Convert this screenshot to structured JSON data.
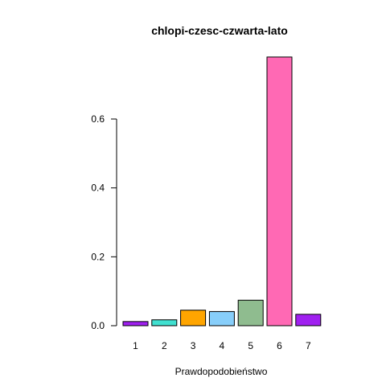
{
  "chart_data": {
    "type": "bar",
    "title": "chlopi-czesc-czwarta-lato",
    "xlabel": "Prawdopodobieństwo",
    "ylabel": "",
    "categories": [
      "1",
      "2",
      "3",
      "4",
      "5",
      "6",
      "7"
    ],
    "values": [
      0.012,
      0.017,
      0.045,
      0.041,
      0.074,
      0.78,
      0.033
    ],
    "colors": [
      "#A020F0",
      "#40E0D0",
      "#FFA500",
      "#87CEFA",
      "#8FBC8F",
      "#FF69B4",
      "#A020F0"
    ],
    "yticks": [
      0.0,
      0.2,
      0.4,
      0.6
    ],
    "ytick_labels": [
      "0.0",
      "0.2",
      "0.4",
      "0.6"
    ],
    "ylim": [
      0,
      0.78
    ],
    "grid": false,
    "legend": "none"
  }
}
